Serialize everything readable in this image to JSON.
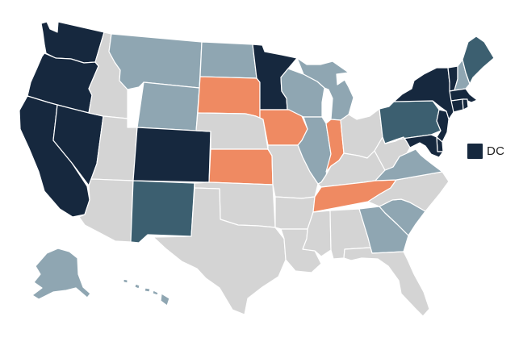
{
  "colors": {
    "navy": "#16283e",
    "teal": "#3c5f70",
    "slate": "#8fa6b2",
    "orange": "#ef8a62",
    "gray": "#d4d4d4",
    "border": "#ffffff"
  },
  "dc_label": {
    "text": "DC",
    "category": "navy"
  },
  "states": [
    {
      "id": "WA",
      "category": "navy"
    },
    {
      "id": "OR",
      "category": "navy"
    },
    {
      "id": "CA",
      "category": "navy"
    },
    {
      "id": "NV",
      "category": "navy"
    },
    {
      "id": "ID",
      "category": "gray"
    },
    {
      "id": "MT",
      "category": "slate"
    },
    {
      "id": "WY",
      "category": "slate"
    },
    {
      "id": "UT",
      "category": "gray"
    },
    {
      "id": "AZ",
      "category": "gray"
    },
    {
      "id": "CO",
      "category": "navy"
    },
    {
      "id": "NM",
      "category": "teal"
    },
    {
      "id": "ND",
      "category": "slate"
    },
    {
      "id": "SD",
      "category": "orange"
    },
    {
      "id": "NE",
      "category": "gray"
    },
    {
      "id": "KS",
      "category": "orange"
    },
    {
      "id": "OK",
      "category": "gray"
    },
    {
      "id": "TX",
      "category": "gray"
    },
    {
      "id": "MN",
      "category": "navy"
    },
    {
      "id": "IA",
      "category": "orange"
    },
    {
      "id": "MO",
      "category": "gray"
    },
    {
      "id": "AR",
      "category": "gray"
    },
    {
      "id": "LA",
      "category": "gray"
    },
    {
      "id": "WI",
      "category": "slate"
    },
    {
      "id": "IL",
      "category": "slate"
    },
    {
      "id": "MI",
      "category": "slate"
    },
    {
      "id": "IN",
      "category": "orange"
    },
    {
      "id": "OH",
      "category": "gray"
    },
    {
      "id": "KY",
      "category": "gray"
    },
    {
      "id": "TN",
      "category": "orange"
    },
    {
      "id": "MS",
      "category": "gray"
    },
    {
      "id": "AL",
      "category": "gray"
    },
    {
      "id": "GA",
      "category": "slate"
    },
    {
      "id": "FL",
      "category": "gray"
    },
    {
      "id": "SC",
      "category": "slate"
    },
    {
      "id": "NC",
      "category": "gray"
    },
    {
      "id": "VA",
      "category": "slate"
    },
    {
      "id": "WV",
      "category": "gray"
    },
    {
      "id": "PA",
      "category": "teal"
    },
    {
      "id": "NY",
      "category": "navy"
    },
    {
      "id": "VT",
      "category": "navy"
    },
    {
      "id": "NH",
      "category": "slate"
    },
    {
      "id": "ME",
      "category": "teal"
    },
    {
      "id": "MA",
      "category": "navy"
    },
    {
      "id": "CT",
      "category": "navy"
    },
    {
      "id": "RI",
      "category": "navy"
    },
    {
      "id": "NJ",
      "category": "navy"
    },
    {
      "id": "DE",
      "category": "navy"
    },
    {
      "id": "MD",
      "category": "navy"
    },
    {
      "id": "AK",
      "category": "slate"
    },
    {
      "id": "HI",
      "category": "slate"
    }
  ]
}
